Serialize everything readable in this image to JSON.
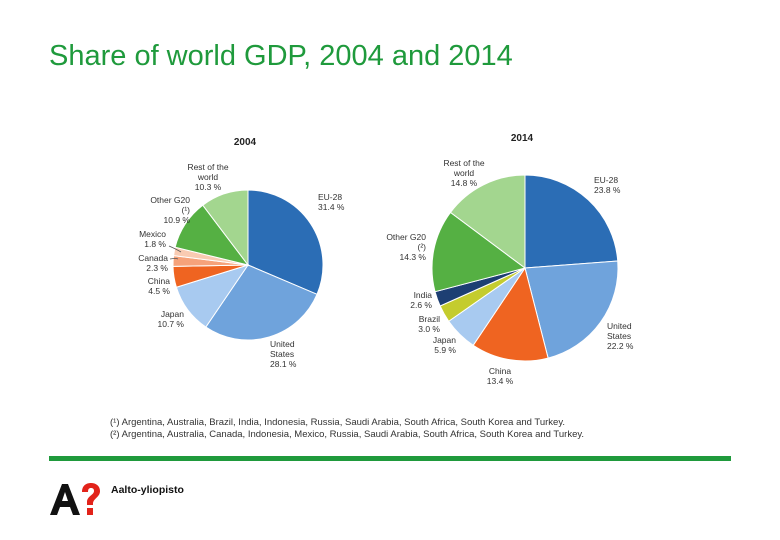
{
  "page": {
    "title": "Share of world GDP, 2004 and 2014",
    "footnotes": [
      "(¹) Argentina, Australia, Brazil, India, Indonesia, Russia, Saudi Arabia, South Africa, South Korea and Turkey.",
      "(²) Argentina, Australia, Canada, Indonesia, Mexico, Russia, Saudi Arabia, South Africa, South Korea and Turkey."
    ],
    "brand": "Aalto-yliopisto",
    "logo_text": "A?"
  },
  "colors": {
    "title_green": "#1f9a3c",
    "rule_green": "#1f9a3c"
  },
  "chart_data": [
    {
      "type": "pie",
      "title": "2004",
      "slices": [
        {
          "label": [
            "EU-28",
            "31.4 %"
          ],
          "value": 31.4,
          "color": "#2b6db5",
          "side": "right"
        },
        {
          "label": [
            "United",
            "States",
            "28.1 %"
          ],
          "value": 28.1,
          "color": "#6fa3dc",
          "side": "right"
        },
        {
          "label": [
            "Japan",
            "10.7 %"
          ],
          "value": 10.7,
          "color": "#a8caf0",
          "side": "left"
        },
        {
          "label": [
            "China",
            "4.5 %"
          ],
          "value": 4.5,
          "color": "#ef6421",
          "side": "left"
        },
        {
          "label": [
            "Canada",
            "2.3 %"
          ],
          "value": 2.3,
          "color": "#f6a27a",
          "side": "left"
        },
        {
          "label": [
            "Mexico",
            "1.8 %"
          ],
          "value": 1.8,
          "color": "#f9cbb2",
          "side": "left"
        },
        {
          "label": [
            "Other G20",
            "(¹)",
            "10.9 %"
          ],
          "value": 10.9,
          "color": "#55b043",
          "side": "left"
        },
        {
          "label": [
            "Rest of the",
            "world",
            "10.3 %"
          ],
          "value": 10.3,
          "color": "#a3d68f",
          "side": "left"
        }
      ]
    },
    {
      "type": "pie",
      "title": "2014",
      "slices": [
        {
          "label": [
            "EU-28",
            "23.8 %"
          ],
          "value": 23.8,
          "color": "#2b6db5",
          "side": "right"
        },
        {
          "label": [
            "United",
            "States",
            "22.2 %"
          ],
          "value": 22.2,
          "color": "#6fa3dc",
          "side": "right"
        },
        {
          "label": [
            "China",
            "13.4 %"
          ],
          "value": 13.4,
          "color": "#ef6421",
          "side": "left"
        },
        {
          "label": [
            "Japan",
            "5.9 %"
          ],
          "value": 5.9,
          "color": "#a8caf0",
          "side": "left"
        },
        {
          "label": [
            "Brazil",
            "3.0 %"
          ],
          "value": 3.0,
          "color": "#c4cc2e",
          "side": "left"
        },
        {
          "label": [
            "India",
            "2.6 %"
          ],
          "value": 2.6,
          "color": "#1d3f73",
          "side": "left"
        },
        {
          "label": [
            "Other G20",
            "(²)",
            "14.3 %"
          ],
          "value": 14.3,
          "color": "#55b043",
          "side": "left"
        },
        {
          "label": [
            "Rest of the",
            "world",
            "14.8 %"
          ],
          "value": 14.8,
          "color": "#a3d68f",
          "side": "left"
        }
      ]
    }
  ]
}
